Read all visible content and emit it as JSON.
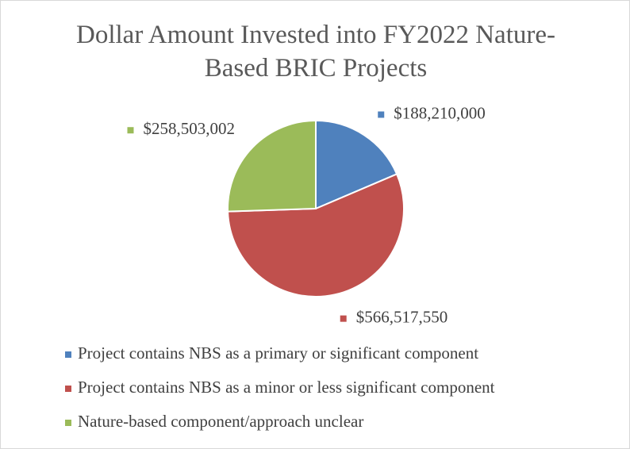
{
  "chart_data": {
    "type": "pie",
    "title": "Dollar Amount Invested into FY2022 Nature-Based BRIC Projects",
    "categories": [
      "Project contains NBS as a primary or significant component",
      "Project contains NBS as a minor or less significant component",
      "Nature-based component/approach unclear"
    ],
    "values": [
      188210000,
      566517550,
      258503002
    ],
    "value_labels": [
      "$188,210,000",
      "$566,517,550",
      "$258,503,002"
    ],
    "colors": [
      "#4f81bd",
      "#c0504d",
      "#9bbb59"
    ],
    "legend": "bottom"
  }
}
